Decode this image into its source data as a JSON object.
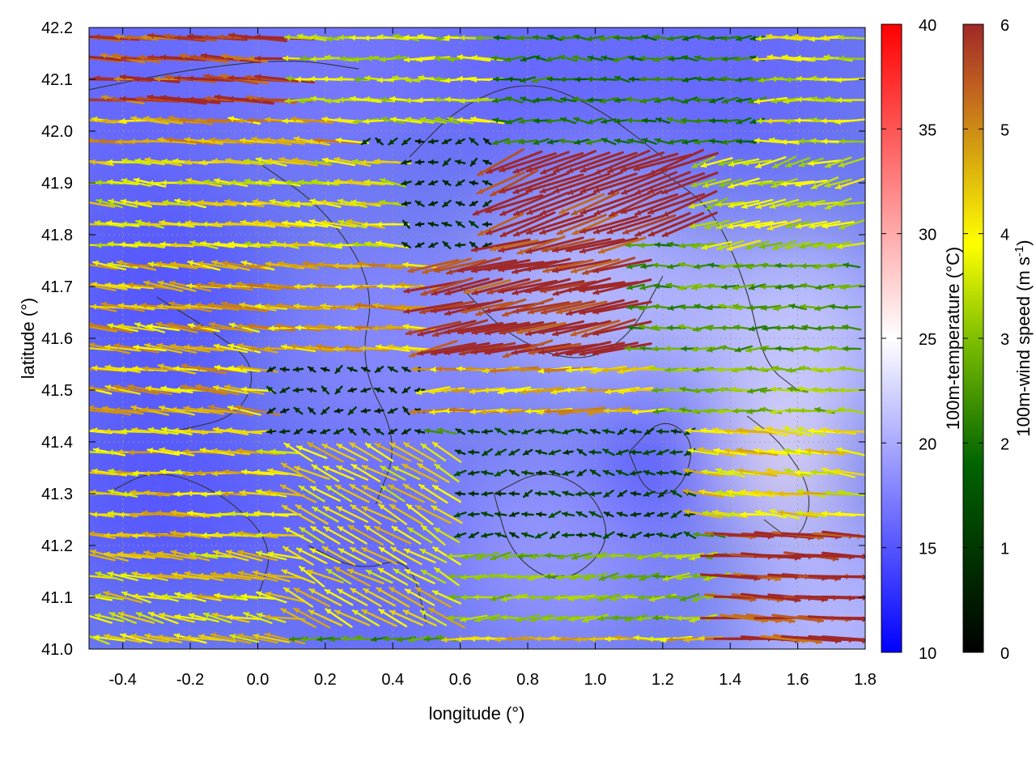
{
  "chart_data": {
    "type": "heatmap",
    "title": "",
    "xlabel": "longitude (°)",
    "ylabel": "latitude (°)",
    "xlim": [
      -0.5,
      1.8
    ],
    "ylim": [
      41.0,
      42.2
    ],
    "x_ticks": [
      "-0.4",
      "-0.2",
      "0.0",
      "0.2",
      "0.4",
      "0.6",
      "0.8",
      "1.0",
      "1.2",
      "1.4",
      "1.6",
      "1.8"
    ],
    "x_tick_values": [
      -0.4,
      -0.2,
      0.0,
      0.2,
      0.4,
      0.6,
      0.8,
      1.0,
      1.2,
      1.4,
      1.6,
      1.8
    ],
    "y_ticks": [
      "41.0",
      "41.1",
      "41.2",
      "41.3",
      "41.4",
      "41.5",
      "41.6",
      "41.7",
      "41.8",
      "41.9",
      "42.0",
      "42.1",
      "42.2"
    ],
    "y_tick_values": [
      41.0,
      41.1,
      41.2,
      41.3,
      41.4,
      41.5,
      41.6,
      41.7,
      41.8,
      41.9,
      42.0,
      42.1,
      42.2
    ],
    "grid": true,
    "temperature_colorbar": {
      "label": "100m-temperature (°C)",
      "range": [
        10,
        40
      ],
      "ticks": [
        "10",
        "15",
        "20",
        "25",
        "30",
        "35",
        "40"
      ],
      "tick_values": [
        10,
        15,
        20,
        25,
        30,
        35,
        40
      ],
      "colors": [
        "#0000ff",
        "#ffffff",
        "#ff0000"
      ]
    },
    "wind_colorbar": {
      "label_main": "100m-wind speed (m s",
      "label_sup": "-1",
      "label_end": ")",
      "range": [
        0,
        6
      ],
      "ticks": [
        "0",
        "1",
        "2",
        "3",
        "4",
        "5",
        "6"
      ],
      "tick_values": [
        0,
        1,
        2,
        3,
        4,
        5,
        6
      ],
      "colors": [
        "#000000",
        "#006400",
        "#7fbf00",
        "#ffff00",
        "#d4a010",
        "#c06020",
        "#a02828"
      ]
    },
    "temperature_field": [
      {
        "lon": -0.4,
        "lat": 42.1,
        "t": 16
      },
      {
        "lon": 0.2,
        "lat": 42.1,
        "t": 17
      },
      {
        "lon": 0.8,
        "lat": 42.1,
        "t": 16
      },
      {
        "lon": 1.4,
        "lat": 42.1,
        "t": 16
      },
      {
        "lon": -0.3,
        "lat": 41.7,
        "t": 15
      },
      {
        "lon": 0.4,
        "lat": 41.6,
        "t": 18
      },
      {
        "lon": 1.0,
        "lat": 41.7,
        "t": 21
      },
      {
        "lon": 1.6,
        "lat": 41.6,
        "t": 22
      },
      {
        "lon": -0.3,
        "lat": 41.3,
        "t": 15
      },
      {
        "lon": 0.3,
        "lat": 41.2,
        "t": 16
      },
      {
        "lon": 0.9,
        "lat": 41.2,
        "t": 19
      },
      {
        "lon": 1.55,
        "lat": 41.35,
        "t": 26
      },
      {
        "lon": 1.18,
        "lat": 41.35,
        "t": 13
      },
      {
        "lon": 1.7,
        "lat": 41.05,
        "t": 21
      }
    ],
    "wind_regions": [
      {
        "lon": [
          -0.5,
          0.1
        ],
        "lat": [
          42.05,
          42.2
        ],
        "u": -5.5,
        "v": 0.4
      },
      {
        "lon": [
          -0.5,
          0.3
        ],
        "lat": [
          41.95,
          42.05
        ],
        "u": -3.8,
        "v": 0.3
      },
      {
        "lon": [
          -0.5,
          0.4
        ],
        "lat": [
          41.75,
          41.95
        ],
        "u": -3.0,
        "v": 0.3
      },
      {
        "lon": [
          0.1,
          0.7
        ],
        "lat": [
          42.0,
          42.2
        ],
        "u": -2.5,
        "v": 0.1
      },
      {
        "lon": [
          0.7,
          1.5
        ],
        "lat": [
          41.95,
          42.2
        ],
        "u": -1.2,
        "v": 0.0
      },
      {
        "lon": [
          1.5,
          1.8
        ],
        "lat": [
          41.95,
          42.2
        ],
        "u": -2.8,
        "v": 0.0
      },
      {
        "lon": [
          0.3,
          0.7
        ],
        "lat": [
          41.75,
          42.0
        ],
        "u": -0.4,
        "v": 0.0
      },
      {
        "lon": [
          0.5,
          1.3
        ],
        "lat": [
          41.78,
          41.95
        ],
        "u": -5.8,
        "v": -2.2
      },
      {
        "lon": [
          1.3,
          1.8
        ],
        "lat": [
          41.75,
          41.95
        ],
        "u": -2.5,
        "v": -0.6
      },
      {
        "lon": [
          -0.5,
          0.0
        ],
        "lat": [
          41.45,
          41.75
        ],
        "u": -3.6,
        "v": 0.5
      },
      {
        "lon": [
          0.0,
          0.5
        ],
        "lat": [
          41.55,
          41.75
        ],
        "u": -3.8,
        "v": 0.2
      },
      {
        "lon": [
          0.5,
          1.1
        ],
        "lat": [
          41.55,
          41.78
        ],
        "u": -6.0,
        "v": -1.3
      },
      {
        "lon": [
          1.1,
          1.8
        ],
        "lat": [
          41.55,
          41.75
        ],
        "u": -1.6,
        "v": 0.0
      },
      {
        "lon": [
          0.0,
          0.5
        ],
        "lat": [
          41.4,
          41.55
        ],
        "u": -0.4,
        "v": 0.0
      },
      {
        "lon": [
          0.5,
          1.2
        ],
        "lat": [
          41.42,
          41.55
        ],
        "u": -3.8,
        "v": -0.2
      },
      {
        "lon": [
          1.2,
          1.8
        ],
        "lat": [
          41.42,
          41.55
        ],
        "u": -2.0,
        "v": 0.0
      },
      {
        "lon": [
          -0.5,
          0.1
        ],
        "lat": [
          41.2,
          41.45
        ],
        "u": -3.4,
        "v": 0.2
      },
      {
        "lon": [
          0.1,
          0.6
        ],
        "lat": [
          41.05,
          41.4
        ],
        "u": -2.8,
        "v": 1.5
      },
      {
        "lon": [
          0.6,
          1.3
        ],
        "lat": [
          41.22,
          41.42
        ],
        "u": -0.6,
        "v": 0.0
      },
      {
        "lon": [
          1.3,
          1.8
        ],
        "lat": [
          41.25,
          41.42
        ],
        "u": -3.2,
        "v": 0.4
      },
      {
        "lon": [
          0.6,
          1.4
        ],
        "lat": [
          41.05,
          41.22
        ],
        "u": -2.0,
        "v": -0.2
      },
      {
        "lon": [
          1.4,
          1.8
        ],
        "lat": [
          41.0,
          41.25
        ],
        "u": 6.0,
        "v": -0.3
      },
      {
        "lon": [
          -0.5,
          0.1
        ],
        "lat": [
          41.0,
          41.2
        ],
        "u": -3.2,
        "v": 0.6
      },
      {
        "lon": [
          0.6,
          1.4
        ],
        "lat": [
          41.0,
          41.05
        ],
        "u": -3.5,
        "v": 0.0
      }
    ],
    "contours": [
      [
        [
          -0.5,
          42.08
        ],
        [
          -0.2,
          42.12
        ],
        [
          0.1,
          42.14
        ],
        [
          0.3,
          42.12
        ]
      ],
      [
        [
          0.0,
          41.94
        ],
        [
          0.2,
          41.85
        ],
        [
          0.35,
          41.7
        ],
        [
          0.3,
          41.55
        ],
        [
          0.42,
          41.4
        ],
        [
          0.35,
          41.28
        ]
      ],
      [
        [
          -0.3,
          41.68
        ],
        [
          -0.15,
          41.62
        ],
        [
          0.0,
          41.55
        ],
        [
          -0.05,
          41.45
        ],
        [
          -0.25,
          41.42
        ]
      ],
      [
        [
          0.45,
          41.95
        ],
        [
          0.6,
          42.05
        ],
        [
          0.8,
          42.1
        ],
        [
          1.0,
          42.05
        ],
        [
          1.2,
          41.95
        ]
      ],
      [
        [
          0.7,
          41.3
        ],
        [
          0.85,
          41.35
        ],
        [
          1.0,
          41.3
        ],
        [
          1.05,
          41.2
        ],
        [
          0.9,
          41.12
        ],
        [
          0.75,
          41.18
        ],
        [
          0.7,
          41.3
        ]
      ],
      [
        [
          1.1,
          41.38
        ],
        [
          1.2,
          41.45
        ],
        [
          1.3,
          41.4
        ],
        [
          1.25,
          41.3
        ],
        [
          1.15,
          41.3
        ],
        [
          1.1,
          41.38
        ]
      ],
      [
        [
          1.45,
          41.45
        ],
        [
          1.55,
          41.4
        ],
        [
          1.65,
          41.3
        ],
        [
          1.6,
          41.2
        ],
        [
          1.5,
          41.25
        ]
      ],
      [
        [
          0.15,
          41.2
        ],
        [
          0.3,
          41.15
        ],
        [
          0.45,
          41.18
        ],
        [
          0.5,
          41.05
        ]
      ],
      [
        [
          -0.45,
          41.3
        ],
        [
          -0.3,
          41.35
        ],
        [
          -0.1,
          41.3
        ],
        [
          0.05,
          41.2
        ],
        [
          0.0,
          41.1
        ]
      ],
      [
        [
          1.2,
          41.92
        ],
        [
          1.35,
          41.85
        ],
        [
          1.45,
          41.7
        ],
        [
          1.5,
          41.55
        ],
        [
          1.6,
          41.5
        ]
      ],
      [
        [
          0.6,
          41.7
        ],
        [
          0.75,
          41.6
        ],
        [
          0.95,
          41.55
        ],
        [
          1.1,
          41.6
        ],
        [
          1.2,
          41.72
        ]
      ]
    ]
  }
}
